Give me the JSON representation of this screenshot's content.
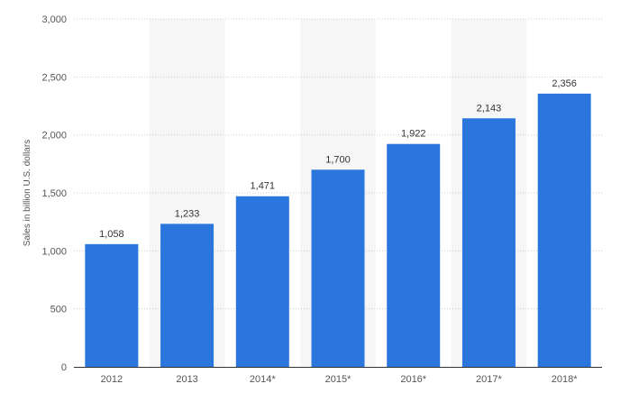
{
  "chart_data": {
    "type": "bar",
    "title": "",
    "xlabel": "",
    "ylabel": "Sales in billion U.S. dollars",
    "categories": [
      "2012",
      "2013",
      "2014*",
      "2015*",
      "2016*",
      "2017*",
      "2018*"
    ],
    "values": [
      1058,
      1233,
      1471,
      1700,
      1922,
      2143,
      2356
    ],
    "data_labels": [
      "1,058",
      "1,233",
      "1,471",
      "1,700",
      "1,922",
      "2,143",
      "2,356"
    ],
    "ylim": [
      0,
      3000
    ],
    "yticks": [
      0,
      500,
      1000,
      1500,
      2000,
      2500,
      3000
    ],
    "ytick_labels": [
      "0",
      "500",
      "1,000",
      "1,500",
      "2,000",
      "2,500",
      "3,000"
    ],
    "grid": true,
    "legend": "none",
    "colors": {
      "bar": "#2a76dd",
      "band": "#f6f6f6",
      "grid": "#cccccc",
      "axis": "#333333"
    }
  }
}
